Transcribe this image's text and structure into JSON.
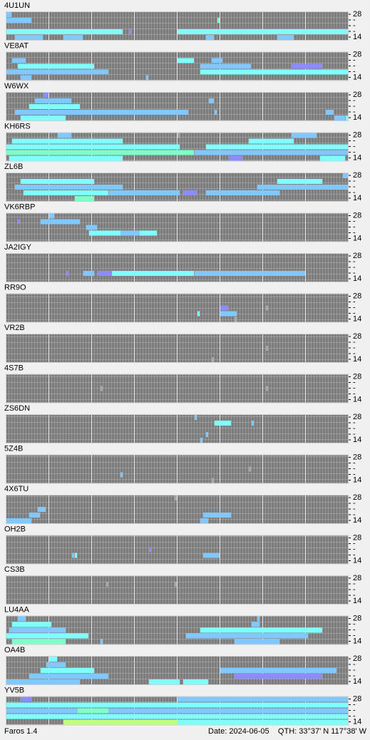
{
  "band_labels": [
    28,
    "-",
    "-",
    "-",
    14
  ],
  "level_colors": [
    "#7c7c7c",
    "#80c8ff",
    "#80ffff",
    "#80ffc8",
    "#8c8cff",
    "#a8a8a8",
    "#c0ff80"
  ],
  "panels": [
    {
      "name": "4U1UN",
      "runs": [
        [
          1,
          0,
          8,
          1
        ],
        [
          3,
          0,
          40,
          2
        ],
        [
          4,
          3,
          12,
          1
        ],
        [
          4,
          20,
          26,
          1
        ],
        [
          3,
          43,
          43,
          4
        ],
        [
          1,
          74,
          74,
          3
        ],
        [
          3,
          60,
          120,
          2
        ],
        [
          4,
          70,
          72,
          1
        ],
        [
          4,
          95,
          100,
          1
        ],
        [
          0,
          0,
          1,
          1
        ]
      ]
    },
    {
      "name": "VE8AT",
      "runs": [
        [
          1,
          2,
          6,
          1
        ],
        [
          2,
          4,
          30,
          2
        ],
        [
          3,
          0,
          35,
          1
        ],
        [
          4,
          5,
          8,
          1
        ],
        [
          4,
          49,
          49,
          1
        ],
        [
          1,
          60,
          65,
          2
        ],
        [
          2,
          68,
          85,
          1
        ],
        [
          3,
          68,
          120,
          2
        ],
        [
          2,
          100,
          110,
          4
        ],
        [
          1,
          72,
          75,
          1
        ]
      ]
    },
    {
      "name": "W6WX",
      "runs": [
        [
          0,
          13,
          14,
          4
        ],
        [
          1,
          10,
          22,
          1
        ],
        [
          2,
          8,
          25,
          2
        ],
        [
          3,
          3,
          48,
          1
        ],
        [
          3,
          40,
          63,
          1
        ],
        [
          4,
          5,
          20,
          2
        ],
        [
          1,
          71,
          72,
          1
        ],
        [
          3,
          73,
          73,
          1
        ],
        [
          3,
          112,
          114,
          1
        ],
        [
          4,
          115,
          118,
          1
        ],
        [
          4,
          119,
          120,
          2
        ]
      ]
    },
    {
      "name": "KH6RS",
      "runs": [
        [
          0,
          18,
          22,
          1
        ],
        [
          1,
          2,
          40,
          2
        ],
        [
          2,
          0,
          60,
          2
        ],
        [
          3,
          0,
          65,
          3
        ],
        [
          4,
          1,
          40,
          2
        ],
        [
          0,
          60,
          60,
          5
        ],
        [
          1,
          85,
          100,
          2
        ],
        [
          2,
          70,
          120,
          2
        ],
        [
          3,
          66,
          120,
          1
        ],
        [
          4,
          78,
          82,
          4
        ],
        [
          0,
          100,
          108,
          1
        ],
        [
          4,
          110,
          118,
          2
        ]
      ]
    },
    {
      "name": "ZL6B",
      "runs": [
        [
          0,
          118,
          120,
          1
        ],
        [
          1,
          5,
          30,
          2
        ],
        [
          2,
          3,
          40,
          1
        ],
        [
          3,
          6,
          35,
          2
        ],
        [
          4,
          24,
          30,
          3
        ],
        [
          3,
          36,
          60,
          1
        ],
        [
          3,
          62,
          66,
          4
        ],
        [
          1,
          95,
          110,
          2
        ],
        [
          2,
          88,
          120,
          1
        ],
        [
          3,
          70,
          95,
          1
        ]
      ]
    },
    {
      "name": "VK6RBP",
      "runs": [
        [
          0,
          15,
          16,
          1
        ],
        [
          1,
          4,
          4,
          4
        ],
        [
          1,
          12,
          25,
          1
        ],
        [
          2,
          28,
          31,
          1
        ],
        [
          3,
          29,
          52,
          2
        ],
        [
          3,
          40,
          46,
          1
        ]
      ]
    },
    {
      "name": "JA2IGY",
      "runs": [
        [
          3,
          21,
          21,
          4
        ],
        [
          3,
          27,
          30,
          1
        ],
        [
          3,
          32,
          36,
          4
        ],
        [
          3,
          37,
          65,
          2
        ],
        [
          3,
          66,
          104,
          1
        ]
      ]
    },
    {
      "name": "RR9O",
      "runs": [
        [
          2,
          75,
          77,
          4
        ],
        [
          3,
          67,
          67,
          2
        ],
        [
          3,
          75,
          80,
          1
        ],
        [
          4,
          80,
          80,
          5
        ],
        [
          2,
          91,
          91,
          5
        ]
      ]
    },
    {
      "name": "VR2B",
      "runs": [
        [
          2,
          91,
          91,
          5
        ],
        [
          4,
          72,
          72,
          5
        ]
      ]
    },
    {
      "name": "4S7B",
      "runs": [
        [
          2,
          33,
          33,
          5
        ],
        [
          2,
          91,
          91,
          5
        ]
      ]
    },
    {
      "name": "ZS6DN",
      "runs": [
        [
          0,
          66,
          66,
          1
        ],
        [
          1,
          73,
          78,
          2
        ],
        [
          1,
          86,
          86,
          1
        ],
        [
          3,
          70,
          70,
          1
        ],
        [
          4,
          68,
          68,
          1
        ]
      ]
    },
    {
      "name": "5Z4B",
      "runs": [
        [
          3,
          40,
          40,
          1
        ],
        [
          2,
          85,
          85,
          5
        ],
        [
          4,
          72,
          72,
          5
        ]
      ]
    },
    {
      "name": "4X6TU",
      "runs": [
        [
          0,
          59,
          59,
          5
        ],
        [
          2,
          11,
          13,
          1
        ],
        [
          3,
          8,
          11,
          1
        ],
        [
          4,
          0,
          8,
          1
        ],
        [
          3,
          69,
          78,
          1
        ],
        [
          4,
          68,
          70,
          1
        ]
      ]
    },
    {
      "name": "OH2B",
      "runs": [
        [
          2,
          50,
          50,
          4
        ],
        [
          3,
          69,
          74,
          1
        ],
        [
          3,
          23,
          23,
          1
        ],
        [
          3,
          24,
          24,
          2
        ]
      ]
    },
    {
      "name": "CS3B",
      "runs": [
        [
          1,
          35,
          35,
          5
        ],
        [
          1,
          59,
          59,
          5
        ]
      ]
    },
    {
      "name": "LU4AA",
      "runs": [
        [
          0,
          4,
          6,
          1
        ],
        [
          1,
          2,
          15,
          2
        ],
        [
          2,
          1,
          20,
          1
        ],
        [
          3,
          0,
          28,
          2
        ],
        [
          4,
          2,
          20,
          3
        ],
        [
          4,
          33,
          33,
          1
        ],
        [
          1,
          86,
          88,
          1
        ],
        [
          2,
          68,
          110,
          2
        ],
        [
          3,
          63,
          105,
          1
        ],
        [
          4,
          80,
          95,
          1
        ],
        [
          0,
          88,
          88,
          1
        ]
      ]
    },
    {
      "name": "OA4B",
      "runs": [
        [
          0,
          15,
          17,
          2
        ],
        [
          1,
          14,
          20,
          1
        ],
        [
          2,
          12,
          30,
          2
        ],
        [
          3,
          8,
          35,
          1
        ],
        [
          4,
          0,
          25,
          1
        ],
        [
          4,
          50,
          60,
          2
        ],
        [
          2,
          75,
          115,
          1
        ],
        [
          3,
          80,
          110,
          4
        ],
        [
          4,
          62,
          70,
          2
        ]
      ]
    },
    {
      "name": "YV5B",
      "runs": [
        [
          0,
          60,
          120,
          1
        ],
        [
          1,
          0,
          120,
          2
        ],
        [
          2,
          0,
          120,
          1
        ],
        [
          3,
          0,
          120,
          2
        ],
        [
          4,
          20,
          60,
          6
        ],
        [
          4,
          60,
          120,
          2
        ],
        [
          2,
          25,
          35,
          3
        ],
        [
          0,
          5,
          8,
          4
        ]
      ]
    }
  ],
  "footer": {
    "app": "Faros 1.4",
    "date": "Date: 2024-06-05",
    "qth": "QTH: 33°37' N  117°38' W"
  }
}
